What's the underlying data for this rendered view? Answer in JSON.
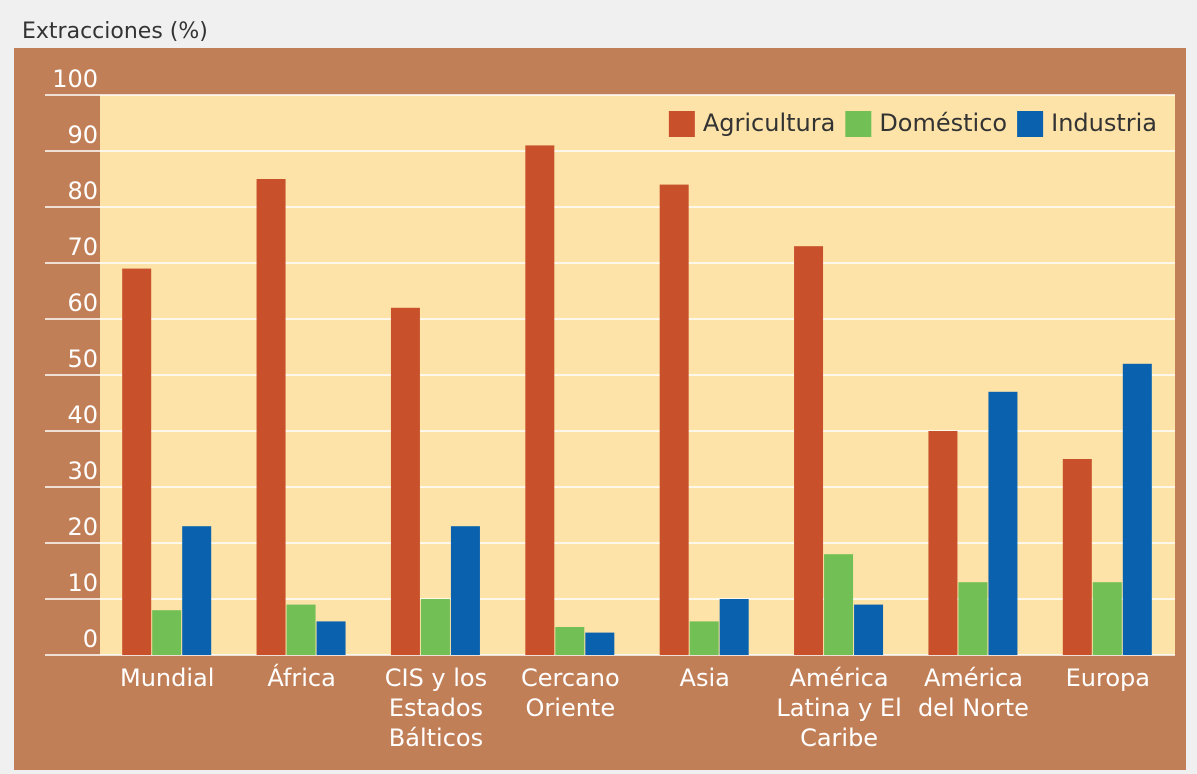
{
  "chart_data": {
    "type": "bar",
    "title": "Extracciones (%)",
    "categories": [
      "Mundial",
      "África",
      "CIS y los Estados Bálticos",
      "Cercano Oriente",
      "Asia",
      "América Latina y El Caribe",
      "América del Norte",
      "Europa"
    ],
    "series": [
      {
        "name": "Agricultura",
        "color": "#c8502a",
        "values": [
          69,
          85,
          62,
          91,
          84,
          73,
          40,
          35
        ]
      },
      {
        "name": "Doméstico",
        "color": "#72bf55",
        "values": [
          8,
          9,
          10,
          5,
          6,
          18,
          13,
          13
        ]
      },
      {
        "name": "Industria",
        "color": "#0a62ae",
        "values": [
          23,
          6,
          23,
          4,
          10,
          9,
          47,
          52
        ]
      }
    ],
    "ylim": [
      0,
      100
    ],
    "yticks": [
      0,
      10,
      20,
      30,
      40,
      50,
      60,
      70,
      80,
      90,
      100
    ],
    "grid": true,
    "legend": "upper right"
  }
}
